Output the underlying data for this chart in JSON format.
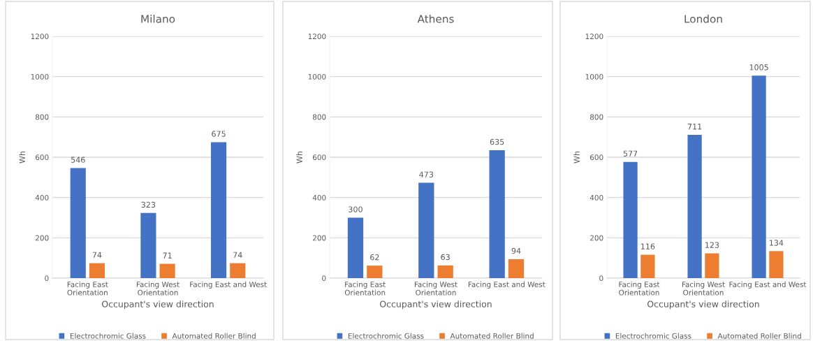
{
  "chart_data": [
    {
      "type": "bar",
      "title": "Milano",
      "xlabel": "Occupant's view direction",
      "ylabel": "Wh",
      "categories": [
        "Facing East\nOrientation",
        "Facing West\nOrientation",
        "Facing East and West"
      ],
      "series": [
        {
          "name": "Electrochromic Glass",
          "color": "#4472c4",
          "values": [
            546,
            323,
            675
          ]
        },
        {
          "name": "Automated Roller Blind",
          "color": "#ed7d31",
          "values": [
            74,
            71,
            74
          ]
        }
      ],
      "ylim": [
        0,
        1200
      ],
      "yticks": [
        0,
        200,
        400,
        600,
        800,
        1000,
        1200
      ],
      "grid": "y",
      "legend": "bottom",
      "data_labels": true
    },
    {
      "type": "bar",
      "title": "Athens",
      "xlabel": "Occupant's view direction",
      "ylabel": "Wh",
      "categories": [
        "Facing East\nOrientation",
        "Facing West\nOrientation",
        "Facing East and West"
      ],
      "series": [
        {
          "name": "Electrochromic Glass",
          "color": "#4472c4",
          "values": [
            300,
            473,
            635
          ]
        },
        {
          "name": "Automated Roller Blind",
          "color": "#ed7d31",
          "values": [
            62,
            63,
            94
          ]
        }
      ],
      "ylim": [
        0,
        1200
      ],
      "yticks": [
        0,
        200,
        400,
        600,
        800,
        1000,
        1200
      ],
      "grid": "y",
      "legend": "bottom",
      "data_labels": true
    },
    {
      "type": "bar",
      "title": "London",
      "xlabel": "Occupant's view direction",
      "ylabel": "Wh",
      "categories": [
        "Facing East\nOrientation",
        "Facing West\nOrientation",
        "Facing East and West"
      ],
      "series": [
        {
          "name": "Electrochromic Glass",
          "color": "#4472c4",
          "values": [
            577,
            711,
            1005
          ]
        },
        {
          "name": "Automated Roller Blind",
          "color": "#ed7d31",
          "values": [
            116,
            123,
            134
          ]
        }
      ],
      "ylim": [
        0,
        1200
      ],
      "yticks": [
        0,
        200,
        400,
        600,
        800,
        1000,
        1200
      ],
      "grid": "y",
      "legend": "bottom",
      "data_labels": true
    }
  ]
}
